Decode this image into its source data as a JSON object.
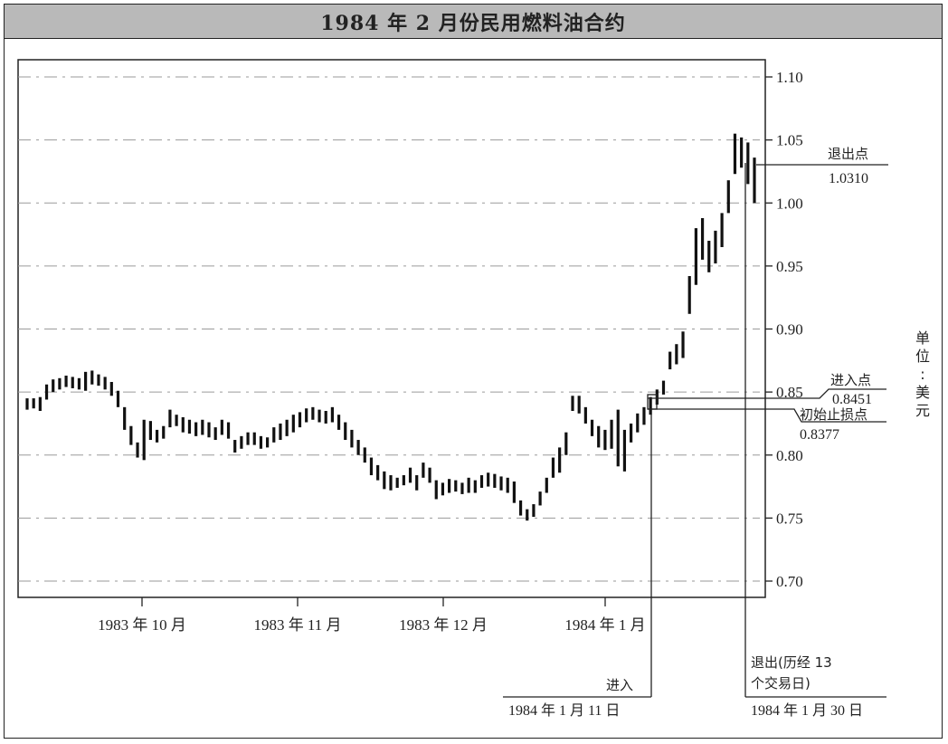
{
  "title": "1984 年 2 月份民用燃料油合约",
  "chart_data": {
    "type": "ohlc",
    "title": "1984 年 2 月份民用燃料油合约",
    "ylabel": "单位：美元",
    "ylim": [
      0.68,
      1.11
    ],
    "yticks": [
      0.7,
      0.75,
      0.8,
      0.85,
      0.9,
      0.95,
      1.0,
      1.05,
      1.1
    ],
    "ytick_labels": [
      "0.70",
      "0.75",
      "0.80",
      "0.85",
      "0.90",
      "0.95",
      "1.00",
      "1.05",
      "1.10"
    ],
    "xtick_labels": [
      "1983 年 10 月",
      "1983 年 11 月",
      "1983 年 12 月",
      "1984 年 1 月"
    ],
    "grid": true,
    "bars": [
      [
        0.845,
        0.836
      ],
      [
        0.845,
        0.837
      ],
      [
        0.846,
        0.835
      ],
      [
        0.856,
        0.844
      ],
      [
        0.86,
        0.85
      ],
      [
        0.861,
        0.852
      ],
      [
        0.863,
        0.854
      ],
      [
        0.862,
        0.853
      ],
      [
        0.861,
        0.852
      ],
      [
        0.866,
        0.851
      ],
      [
        0.867,
        0.856
      ],
      [
        0.864,
        0.855
      ],
      [
        0.862,
        0.852
      ],
      [
        0.858,
        0.847
      ],
      [
        0.851,
        0.838
      ],
      [
        0.838,
        0.82
      ],
      [
        0.823,
        0.808
      ],
      [
        0.81,
        0.798
      ],
      [
        0.828,
        0.796
      ],
      [
        0.827,
        0.812
      ],
      [
        0.82,
        0.81
      ],
      [
        0.823,
        0.813
      ],
      [
        0.836,
        0.822
      ],
      [
        0.832,
        0.823
      ],
      [
        0.83,
        0.818
      ],
      [
        0.828,
        0.817
      ],
      [
        0.826,
        0.815
      ],
      [
        0.828,
        0.816
      ],
      [
        0.826,
        0.814
      ],
      [
        0.822,
        0.812
      ],
      [
        0.828,
        0.816
      ],
      [
        0.826,
        0.813
      ],
      [
        0.812,
        0.802
      ],
      [
        0.815,
        0.805
      ],
      [
        0.818,
        0.808
      ],
      [
        0.818,
        0.808
      ],
      [
        0.815,
        0.805
      ],
      [
        0.814,
        0.806
      ],
      [
        0.822,
        0.81
      ],
      [
        0.825,
        0.812
      ],
      [
        0.828,
        0.815
      ],
      [
        0.832,
        0.818
      ],
      [
        0.834,
        0.822
      ],
      [
        0.837,
        0.826
      ],
      [
        0.838,
        0.828
      ],
      [
        0.836,
        0.826
      ],
      [
        0.835,
        0.825
      ],
      [
        0.838,
        0.826
      ],
      [
        0.832,
        0.82
      ],
      [
        0.826,
        0.812
      ],
      [
        0.82,
        0.806
      ],
      [
        0.812,
        0.8
      ],
      [
        0.806,
        0.794
      ],
      [
        0.798,
        0.784
      ],
      [
        0.792,
        0.78
      ],
      [
        0.787,
        0.773
      ],
      [
        0.784,
        0.772
      ],
      [
        0.782,
        0.774
      ],
      [
        0.784,
        0.776
      ],
      [
        0.79,
        0.778
      ],
      [
        0.784,
        0.772
      ],
      [
        0.794,
        0.782
      ],
      [
        0.79,
        0.778
      ],
      [
        0.78,
        0.765
      ],
      [
        0.778,
        0.768
      ],
      [
        0.781,
        0.77
      ],
      [
        0.78,
        0.771
      ],
      [
        0.778,
        0.769
      ],
      [
        0.782,
        0.77
      ],
      [
        0.78,
        0.77
      ],
      [
        0.784,
        0.774
      ],
      [
        0.786,
        0.775
      ],
      [
        0.785,
        0.774
      ],
      [
        0.783,
        0.772
      ],
      [
        0.782,
        0.77
      ],
      [
        0.779,
        0.762
      ],
      [
        0.764,
        0.752
      ],
      [
        0.757,
        0.748
      ],
      [
        0.761,
        0.751
      ],
      [
        0.771,
        0.76
      ],
      [
        0.782,
        0.77
      ],
      [
        0.798,
        0.782
      ],
      [
        0.806,
        0.786
      ],
      [
        0.818,
        0.8
      ],
      [
        0.847,
        0.835
      ],
      [
        0.847,
        0.833
      ],
      [
        0.838,
        0.825
      ],
      [
        0.828,
        0.815
      ],
      [
        0.823,
        0.806
      ],
      [
        0.82,
        0.804
      ],
      [
        0.828,
        0.805
      ],
      [
        0.836,
        0.791
      ],
      [
        0.82,
        0.787
      ],
      [
        0.825,
        0.81
      ],
      [
        0.833,
        0.818
      ],
      [
        0.838,
        0.824
      ],
      [
        0.846,
        0.832
      ],
      [
        0.852,
        0.84
      ],
      [
        0.859,
        0.848
      ],
      [
        0.882,
        0.868
      ],
      [
        0.888,
        0.872
      ],
      [
        0.898,
        0.877
      ],
      [
        0.942,
        0.912
      ],
      [
        0.98,
        0.935
      ],
      [
        0.988,
        0.955
      ],
      [
        0.97,
        0.945
      ],
      [
        0.978,
        0.952
      ],
      [
        0.992,
        0.965
      ],
      [
        1.018,
        0.992
      ],
      [
        1.055,
        1.023
      ],
      [
        1.052,
        1.028
      ],
      [
        1.048,
        1.015
      ],
      [
        1.036,
        1.0
      ]
    ],
    "annotations": [
      {
        "type": "exit",
        "label": "退出点",
        "value": "1.0310",
        "price": 1.031
      },
      {
        "type": "entry",
        "label": "进入点",
        "value": "0.8451",
        "price": 0.8451
      },
      {
        "type": "stop",
        "label": "初始止损点",
        "value": "0.8377",
        "price": 0.8377
      },
      {
        "label": "进入",
        "date": "1984 年 1 月 11 日"
      },
      {
        "label": "退出(历经 13\n个交易日)",
        "date": "1984 年 1 月 30 日"
      }
    ]
  },
  "annotations": {
    "exit_point_label": "退出点",
    "exit_point_value": "1.0310",
    "entry_point_label": "进入点",
    "entry_point_value": "0.8451",
    "stop_label": "初始止损点",
    "stop_value": "0.8377",
    "entry_label": "进入",
    "entry_date": "1984 年 1 月 11 日",
    "exit_label_line1": "退出(历经 13",
    "exit_label_line2": "个交易日)",
    "exit_date": "1984 年 1 月 30 日",
    "unit_label": "单位：美元"
  }
}
